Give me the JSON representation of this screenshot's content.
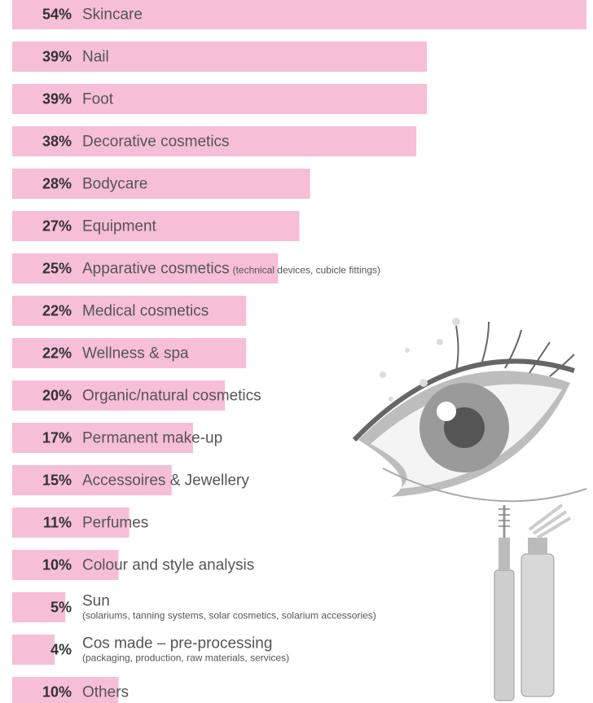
{
  "chart_data": {
    "type": "bar",
    "orientation": "horizontal",
    "color": "#f6bed7",
    "xlim": [
      0,
      54
    ],
    "categories": [
      "Skincare",
      "Nail",
      "Foot",
      "Decorative cosmetics",
      "Bodycare",
      "Equipment",
      "Apparative cosmetics",
      "Medical cosmetics",
      "Wellness & spa",
      "Organic/natural cosmetics",
      "Permanent make-up",
      "Accessoires & Jewellery",
      "Perfumes",
      "Colour and style analysis",
      "Sun",
      "Cos made – pre-processing",
      "Others"
    ],
    "category_notes": [
      null,
      null,
      null,
      null,
      null,
      null,
      "(technical devices, cubicle fittings)",
      null,
      null,
      null,
      null,
      null,
      null,
      null,
      "(solariums, tanning systems, solar cosmetics, solarium accessories)",
      "(packaging, production, raw materials, services)",
      null
    ],
    "values": [
      54,
      39,
      39,
      38,
      28,
      27,
      25,
      22,
      22,
      20,
      17,
      15,
      11,
      10,
      5,
      4,
      10
    ],
    "value_labels": [
      "54%",
      "39%",
      "39%",
      "38%",
      "28%",
      "27%",
      "25%",
      "22%",
      "22%",
      "20%",
      "17%",
      "15%",
      "11%",
      "10%",
      "5%",
      "4%",
      "10%"
    ]
  }
}
